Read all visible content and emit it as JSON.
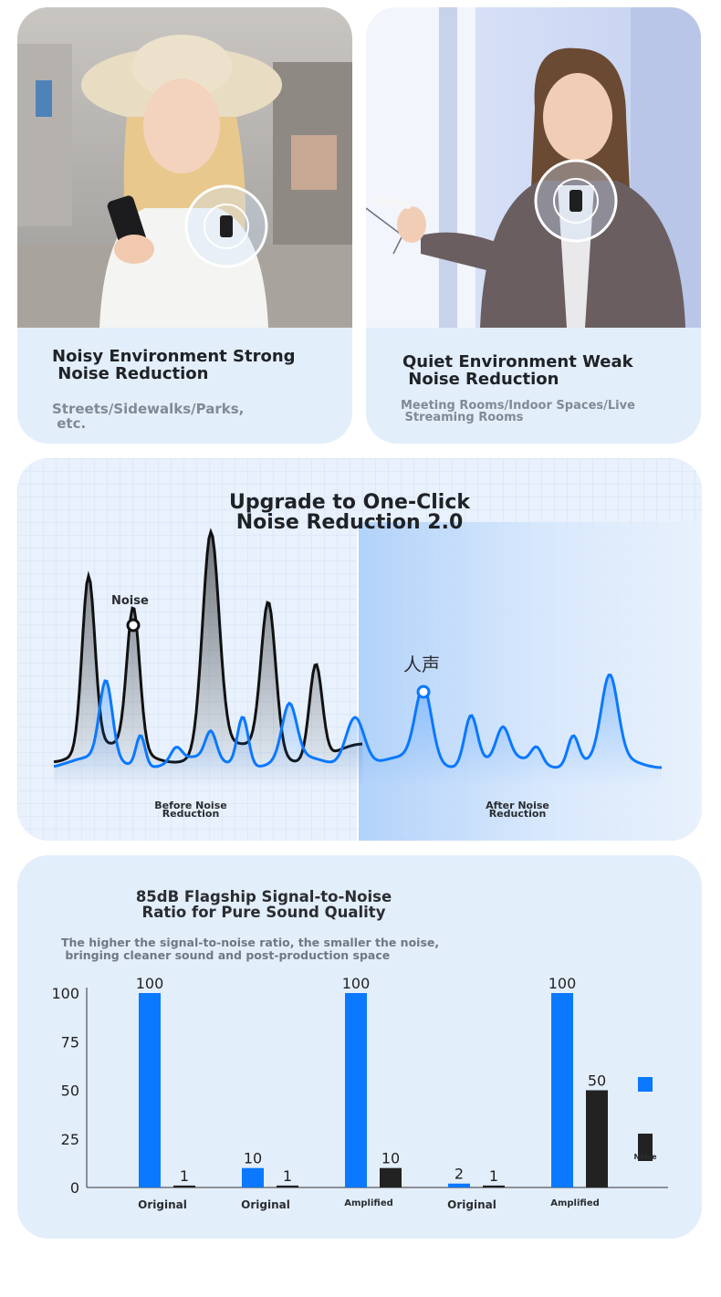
{
  "cards": [
    {
      "title": "Noisy Environment Strong\n Noise Reduction",
      "subtitle": "Streets/Sidewalks/Parks,\n etc."
    },
    {
      "title": "Quiet Environment Weak\n Noise Reduction",
      "subtitle": "Meeting Rooms/Indoor Spaces/Live\n Streaming Rooms"
    }
  ],
  "wave": {
    "title": "Upgrade to One-Click\nNoise Reduction 2.0",
    "noise_label": "Noise",
    "voice_label": "人声",
    "before_label": "Before Noise\nReduction",
    "after_label": "After Noise\nReduction"
  },
  "snr": {
    "title": "85dB Flagship Signal-to-Noise\nRatio for Pure Sound Quality",
    "subtitle": "The higher the signal-to-noise ratio, the smaller the noise,\n bringing cleaner sound and post-production space"
  },
  "colors": {
    "signal": "#0a78ff",
    "noise": "#222222",
    "card": "#e3eefb"
  },
  "chart_data": {
    "type": "bar",
    "yticks": [
      0,
      25,
      50,
      75,
      100
    ],
    "ylim": [
      0,
      100
    ],
    "grid": false,
    "legend_position": "right",
    "legend": [
      "",
      "Noise"
    ],
    "groups": [
      {
        "label": "Original",
        "signal": 100,
        "noise": 1
      },
      {
        "label": "Original",
        "signal": 10,
        "noise": 1
      },
      {
        "label": "Amplified",
        "signal": 100,
        "noise": 10
      },
      {
        "label": "Original",
        "signal": 2,
        "noise": 1
      },
      {
        "label": "Amplified",
        "signal": 100,
        "noise": 50
      }
    ]
  }
}
